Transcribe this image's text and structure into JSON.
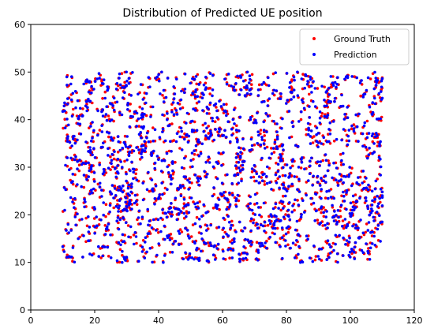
{
  "chart_data": {
    "type": "scatter",
    "title": "Distribution of Predicted UE position",
    "xlabel": "",
    "ylabel": "",
    "xlim": [
      0,
      120
    ],
    "ylim": [
      0,
      60
    ],
    "x_ticks": [
      "0",
      "20",
      "40",
      "60",
      "80",
      "100",
      "120"
    ],
    "y_ticks": [
      "0",
      "10",
      "20",
      "30",
      "40",
      "50",
      "60"
    ],
    "grid": false,
    "legend_position": "top-right",
    "point_region": {
      "x": [
        10,
        110
      ],
      "y": [
        10,
        50
      ]
    },
    "series": [
      {
        "name": "Ground Truth",
        "color": "#ff0000",
        "marker": "dot"
      },
      {
        "name": "Prediction",
        "color": "#0000ff",
        "marker": "dot"
      }
    ]
  }
}
